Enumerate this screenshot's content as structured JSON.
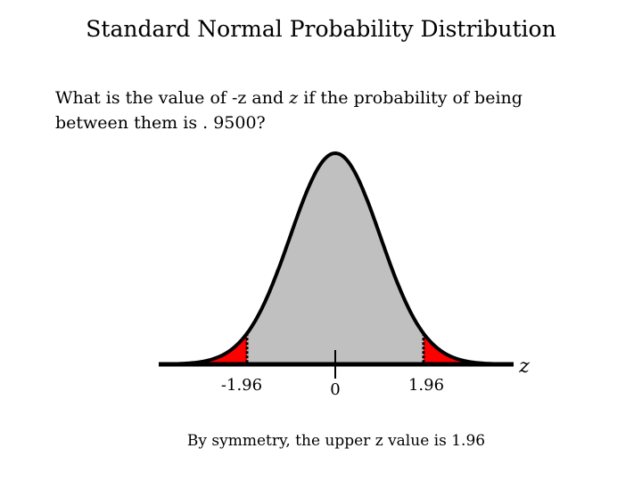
{
  "slide": {
    "title": "Standard Normal Probability Distribution",
    "question": {
      "part1": "What is the value of -z and ",
      "italic_z": "z",
      "part2": " if the probability of being between them is . 9500?"
    },
    "conclusion": "By symmetry, the upper z value is 1.96"
  },
  "diagram": {
    "distribution": "standard normal",
    "lower_critical_value": -1.96,
    "upper_critical_value": 1.96,
    "center_value": 0,
    "central_probability": 0.95,
    "tick_labels": {
      "lower": "-1.96",
      "center": "0",
      "upper": "1.96"
    },
    "axis_label": "z",
    "colors": {
      "body_fill": "#c0c0c0",
      "tail_fill": "#ff0000",
      "outline": "#000000"
    }
  }
}
